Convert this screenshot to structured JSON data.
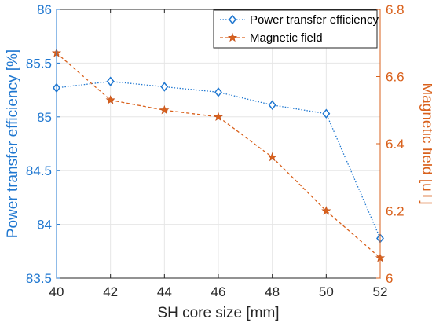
{
  "chart_data": {
    "type": "line",
    "x": [
      40,
      42,
      44,
      46,
      48,
      50,
      52
    ],
    "xlabel": "SH core size [mm]",
    "xlim": [
      40,
      52
    ],
    "x_ticks": [
      "40",
      "42",
      "44",
      "46",
      "48",
      "50",
      "52"
    ],
    "grid": true,
    "legend_position": "top-right",
    "y_left": {
      "label": "Power transfer efficiency [%]",
      "lim": [
        83.5,
        86
      ],
      "ticks": [
        "83.5",
        "84",
        "84.5",
        "85",
        "85.5",
        "86"
      ],
      "color": "#1f77d0"
    },
    "y_right": {
      "label": "Magnetic field [uT]",
      "lim": [
        6.0,
        6.8
      ],
      "ticks": [
        "6",
        "6.2",
        "6.4",
        "6.6",
        "6.8"
      ],
      "color": "#d9611c"
    },
    "series": [
      {
        "name": "Power transfer efficiency",
        "axis": "left",
        "marker": "diamond",
        "line_style": "dotted",
        "color": "#1f77d0",
        "values": [
          85.27,
          85.33,
          85.28,
          85.23,
          85.11,
          85.03,
          83.87
        ]
      },
      {
        "name": "Magnetic field",
        "axis": "right",
        "marker": "star",
        "line_style": "dashed",
        "color": "#d9611c",
        "values": [
          6.67,
          6.53,
          6.5,
          6.48,
          6.36,
          6.2,
          6.06
        ]
      }
    ]
  }
}
